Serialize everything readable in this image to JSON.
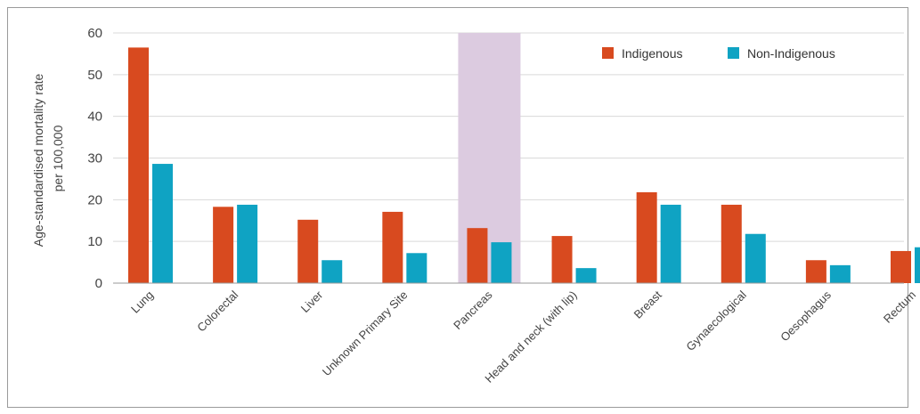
{
  "chart_data": {
    "type": "bar",
    "title": "",
    "ylabel": [
      "Age-standardised mortality rate",
      "per 100,000"
    ],
    "xlabel": "",
    "ylim": [
      0,
      60
    ],
    "yticks": [
      "0",
      "10",
      "20",
      "30",
      "40",
      "50",
      "60"
    ],
    "grid": "horizontal",
    "legend_position": "top-right",
    "highlight_category": "Pancreas",
    "highlight_color": "#dccbe0",
    "categories": [
      "Lung",
      "Colorectal",
      "Liver",
      "Unknown Primary Site",
      "Pancreas",
      "Head and neck (with lip)",
      "Breast",
      "Gynaecological",
      "Oesophagus",
      "Rectum"
    ],
    "series": [
      {
        "name": "Indigenous",
        "color": "#d84a1f",
        "values": [
          56.5,
          18.3,
          15.2,
          17.1,
          13.2,
          11.3,
          21.8,
          18.8,
          5.5,
          7.7
        ]
      },
      {
        "name": "Non-Indigenous",
        "color": "#0fa3c3",
        "values": [
          28.6,
          18.8,
          5.5,
          7.2,
          9.8,
          3.6,
          18.8,
          11.8,
          4.3,
          8.6
        ]
      }
    ]
  }
}
